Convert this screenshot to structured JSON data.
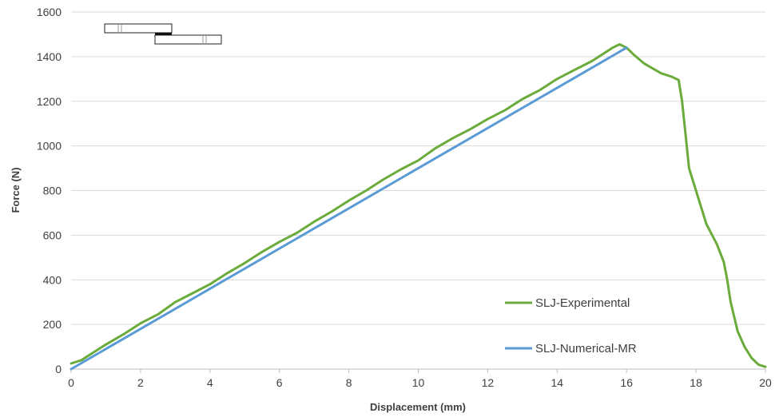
{
  "chart_data": {
    "type": "line",
    "title": "",
    "xlabel": "Displacement (mm)",
    "ylabel": "Force (N)",
    "xlim": [
      0,
      20
    ],
    "ylim": [
      0,
      1600
    ],
    "xticks": [
      0,
      2,
      4,
      6,
      8,
      10,
      12,
      14,
      16,
      18,
      20
    ],
    "yticks": [
      0,
      200,
      400,
      600,
      800,
      1000,
      1200,
      1400,
      1600
    ],
    "grid": "horizontal",
    "legend_position": "lower-right",
    "series": [
      {
        "name": "SLJ-Experimental",
        "color": "#6aab3b",
        "x": [
          0,
          0.3,
          0.6,
          1,
          1.5,
          2,
          2.5,
          3,
          3.5,
          4,
          4.5,
          5,
          5.5,
          6,
          6.5,
          7,
          7.5,
          8,
          8.5,
          9,
          9.5,
          10,
          10.5,
          11,
          11.5,
          12,
          12.5,
          13,
          13.5,
          14,
          14.5,
          15,
          15.3,
          15.6,
          15.8,
          16,
          16.2,
          16.5,
          17,
          17.3,
          17.5,
          17.6,
          17.7,
          17.8,
          18,
          18.3,
          18.6,
          18.8,
          18.9,
          19,
          19.2,
          19.4,
          19.6,
          19.8,
          20
        ],
        "y": [
          25,
          40,
          70,
          110,
          155,
          205,
          245,
          300,
          340,
          380,
          430,
          475,
          525,
          570,
          610,
          660,
          705,
          755,
          800,
          850,
          895,
          935,
          990,
          1035,
          1075,
          1120,
          1160,
          1210,
          1250,
          1300,
          1340,
          1380,
          1410,
          1440,
          1455,
          1440,
          1410,
          1370,
          1325,
          1310,
          1295,
          1200,
          1050,
          900,
          800,
          650,
          560,
          480,
          400,
          300,
          170,
          100,
          50,
          20,
          10
        ]
      },
      {
        "name": "SLJ-Numerical-MR",
        "color": "#5b9bd5",
        "x": [
          0,
          16
        ],
        "y": [
          0,
          1440
        ]
      }
    ]
  },
  "decoration": {
    "specimen_icon": "single-lap-joint-icon"
  }
}
